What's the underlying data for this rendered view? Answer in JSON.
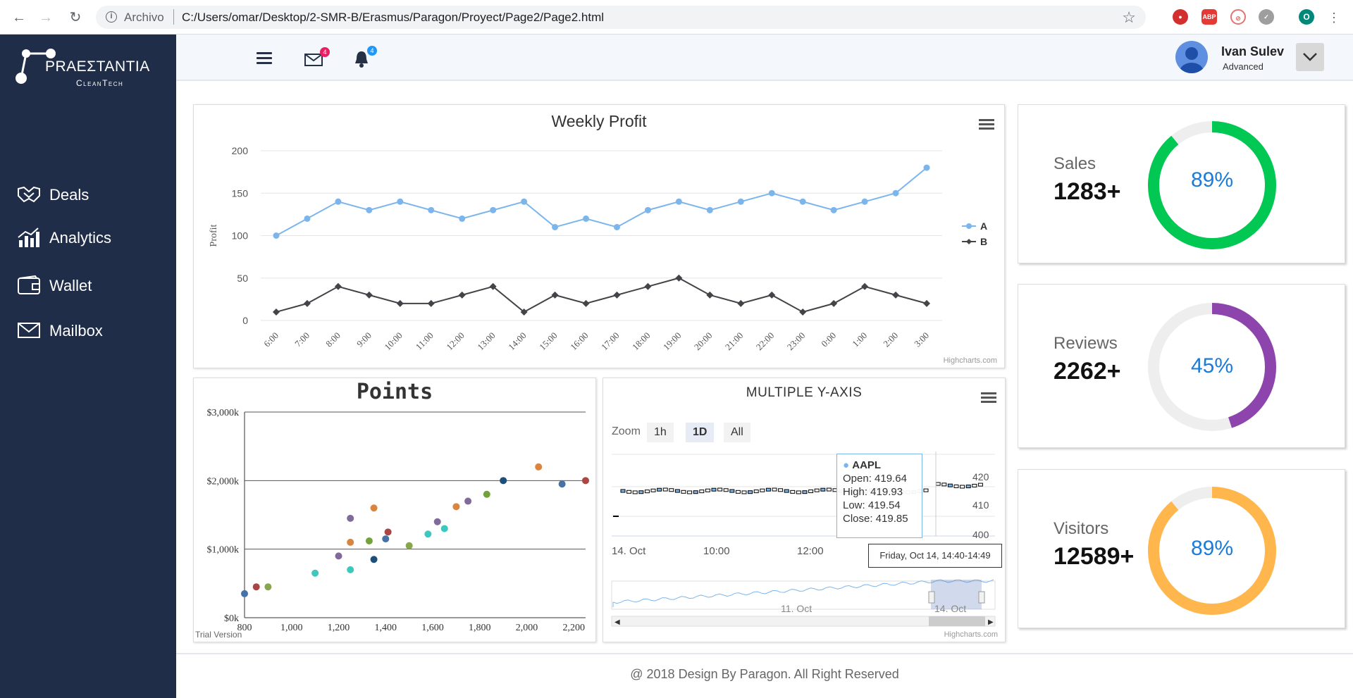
{
  "browser": {
    "address_prefix": "Archivo",
    "url": "C:/Users/omar/Desktop/2-SMR-B/Erasmus/Paragon/Proyect/Page2/Page2.html",
    "profile_initial": "O"
  },
  "brand": {
    "name": "PRAEΣTANTIA",
    "sub": "CleanTech"
  },
  "sidebar": {
    "items": [
      {
        "label": "Deals",
        "icon": "handshake-icon"
      },
      {
        "label": "Analytics",
        "icon": "analytics-icon"
      },
      {
        "label": "Wallet",
        "icon": "wallet-icon"
      },
      {
        "label": "Mailbox",
        "icon": "mailbox-icon"
      }
    ]
  },
  "header": {
    "mail_count": "4",
    "notification_count": "4",
    "user_name": "Ivan Sulev",
    "user_role": "Advanced"
  },
  "weekly_profit": {
    "title": "Weekly Profit",
    "credit": "Highcharts.com"
  },
  "points": {
    "title": "Points",
    "credit": "Trial Version"
  },
  "multi_axis": {
    "title": "MULTIPLE Y-AXIS",
    "zoom_label": "Zoom",
    "ranges": [
      "1h",
      "1D",
      "All"
    ],
    "selected_range": "1D",
    "x_ticks": [
      "14. Oct",
      "10:00",
      "12:00"
    ],
    "y_ticks": [
      "420",
      "410",
      "400"
    ],
    "navigator_labels": [
      "11. Oct",
      "14. Oct"
    ],
    "tooltip": {
      "series": "AAPL",
      "open": "Open: 419.64",
      "high": "High: 419.93",
      "low": "Low: 419.54",
      "close": "Close: 419.85",
      "time": "Friday, Oct 14, 14:40-14:49"
    },
    "credit": "Highcharts.com"
  },
  "stats": [
    {
      "label": "Sales",
      "value": "1283+",
      "percent": 89,
      "percent_text": "89%",
      "color": "#00c853"
    },
    {
      "label": "Reviews",
      "value": "2262+",
      "percent": 45,
      "percent_text": "45%",
      "color": "#8e44ad"
    },
    {
      "label": "Visitors",
      "value": "12589+",
      "percent": 89,
      "percent_text": "89%",
      "color": "#ffb74d"
    }
  ],
  "footer": {
    "text": "@ 2018 Design By Paragon. All Right Reserved"
  },
  "chart_data": [
    {
      "type": "line",
      "title": "Weekly Profit",
      "ylabel": "Profit",
      "xlabel": "",
      "ylim": [
        0,
        200
      ],
      "yticks": [
        "0",
        "50",
        "100",
        "150",
        "200"
      ],
      "categories": [
        "6:00",
        "7:00",
        "8:00",
        "9:00",
        "10:00",
        "11:00",
        "12:00",
        "13:00",
        "14:00",
        "15:00",
        "16:00",
        "17:00",
        "18:00",
        "19:00",
        "20:00",
        "21:00",
        "22:00",
        "23:00",
        "0:00",
        "1:00",
        "2:00",
        "3:00"
      ],
      "series": [
        {
          "name": "A",
          "color": "#7cb5ec",
          "values": [
            100,
            120,
            140,
            130,
            140,
            130,
            120,
            130,
            140,
            110,
            120,
            110,
            130,
            140,
            130,
            140,
            150,
            140,
            130,
            140,
            150,
            180
          ]
        },
        {
          "name": "B",
          "color": "#434348",
          "values": [
            10,
            20,
            40,
            30,
            20,
            20,
            30,
            40,
            10,
            30,
            20,
            30,
            40,
            50,
            30,
            20,
            30,
            10,
            20,
            40,
            30,
            20
          ]
        }
      ],
      "legend": "right",
      "grid": true
    },
    {
      "type": "scatter",
      "title": "Points",
      "xlim": [
        800,
        2250
      ],
      "ylim": [
        0,
        3000
      ],
      "xticks": [
        "800",
        "1,000",
        "1,200",
        "1,400",
        "1,600",
        "1,800",
        "2,000",
        "2,200"
      ],
      "yticks": [
        "$0k",
        "$1,000k",
        "$2,000k",
        "$3,000k"
      ],
      "points": [
        {
          "x": 800,
          "y": 350,
          "color": "#4572a7"
        },
        {
          "x": 850,
          "y": 450,
          "color": "#aa4643"
        },
        {
          "x": 900,
          "y": 450,
          "color": "#89a54e"
        },
        {
          "x": 1100,
          "y": 650,
          "color": "#3dc7be"
        },
        {
          "x": 1200,
          "y": 900,
          "color": "#80699b"
        },
        {
          "x": 1250,
          "y": 1100,
          "color": "#db843d"
        },
        {
          "x": 1250,
          "y": 1450,
          "color": "#80699b"
        },
        {
          "x": 1250,
          "y": 700,
          "color": "#3dc7be"
        },
        {
          "x": 1330,
          "y": 1120,
          "color": "#71a33a"
        },
        {
          "x": 1350,
          "y": 1600,
          "color": "#db843d"
        },
        {
          "x": 1350,
          "y": 850,
          "color": "#1f4e79"
        },
        {
          "x": 1400,
          "y": 1150,
          "color": "#4572a7"
        },
        {
          "x": 1410,
          "y": 1250,
          "color": "#aa4643"
        },
        {
          "x": 1500,
          "y": 1050,
          "color": "#89a54e"
        },
        {
          "x": 1580,
          "y": 1220,
          "color": "#3dc7be"
        },
        {
          "x": 1620,
          "y": 1400,
          "color": "#80699b"
        },
        {
          "x": 1650,
          "y": 1300,
          "color": "#3dc7be"
        },
        {
          "x": 1700,
          "y": 1620,
          "color": "#db843d"
        },
        {
          "x": 1750,
          "y": 1700,
          "color": "#80699b"
        },
        {
          "x": 1830,
          "y": 1800,
          "color": "#71a33a"
        },
        {
          "x": 1900,
          "y": 2000,
          "color": "#1f4e79"
        },
        {
          "x": 2050,
          "y": 2200,
          "color": "#db843d"
        },
        {
          "x": 2150,
          "y": 1950,
          "color": "#4572a7"
        },
        {
          "x": 2250,
          "y": 2000,
          "color": "#aa4643"
        }
      ],
      "grid": true
    }
  ]
}
